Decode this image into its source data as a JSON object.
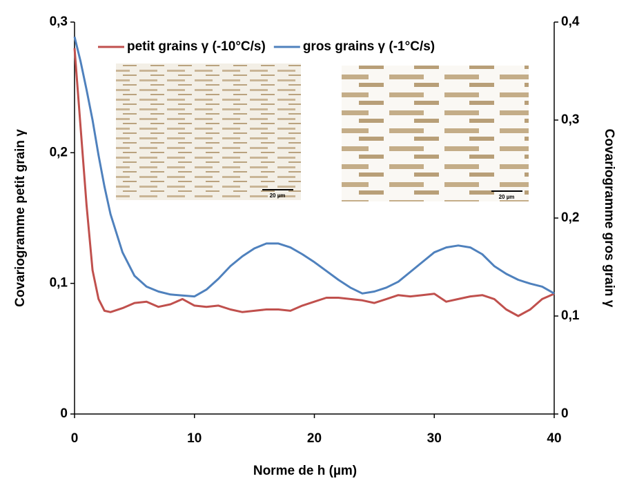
{
  "chart_data": {
    "type": "line",
    "x_label": "Norme de h (µm)",
    "y_label": "Covariogramme petit grain γ",
    "y2_label": "Covariogramme gros grain γ",
    "x": [
      0,
      0.5,
      1,
      1.5,
      2,
      2.5,
      3,
      4,
      5,
      6,
      7,
      8,
      9,
      10,
      11,
      12,
      13,
      14,
      15,
      16,
      17,
      18,
      19,
      20,
      21,
      22,
      23,
      24,
      25,
      26,
      27,
      28,
      29,
      30,
      31,
      32,
      33,
      34,
      35,
      36,
      37,
      38,
      39,
      40
    ],
    "series": [
      {
        "name": "petit grains γ (-10°C/s)",
        "color": "#c0504d",
        "axis": "y",
        "values": [
          0.28,
          0.22,
          0.16,
          0.11,
          0.088,
          0.079,
          0.078,
          0.081,
          0.085,
          0.086,
          0.082,
          0.084,
          0.088,
          0.083,
          0.082,
          0.083,
          0.08,
          0.078,
          0.079,
          0.08,
          0.08,
          0.079,
          0.083,
          0.086,
          0.089,
          0.089,
          0.088,
          0.087,
          0.085,
          0.088,
          0.091,
          0.09,
          0.091,
          0.092,
          0.086,
          0.088,
          0.09,
          0.091,
          0.088,
          0.08,
          0.075,
          0.08,
          0.088,
          0.092
        ]
      },
      {
        "name": "gros grains γ (-1°C/s)",
        "color": "#4f81bd",
        "axis": "y2",
        "values": [
          0.385,
          0.36,
          0.331,
          0.3,
          0.264,
          0.232,
          0.204,
          0.165,
          0.141,
          0.13,
          0.125,
          0.122,
          0.121,
          0.12,
          0.127,
          0.138,
          0.151,
          0.161,
          0.169,
          0.174,
          0.174,
          0.17,
          0.163,
          0.155,
          0.146,
          0.137,
          0.129,
          0.123,
          0.125,
          0.129,
          0.135,
          0.145,
          0.155,
          0.165,
          0.17,
          0.172,
          0.17,
          0.163,
          0.151,
          0.143,
          0.137,
          0.133,
          0.13,
          0.123
        ]
      }
    ],
    "xlim": [
      0,
      40
    ],
    "xticks": [
      0,
      10,
      20,
      30,
      40
    ],
    "ylim": [
      0,
      0.3
    ],
    "yticks": [
      0,
      {
        "value": 0.1,
        "label": "0,1"
      },
      {
        "value": 0.2,
        "label": "0,2"
      },
      {
        "value": 0.3,
        "label": "0,3"
      }
    ],
    "y2lim": [
      0,
      0.4
    ],
    "y2ticks": [
      0,
      {
        "value": 0.1,
        "label": "0,1"
      },
      {
        "value": 0.2,
        "label": "0,2"
      },
      {
        "value": 0.3,
        "label": "0,3"
      },
      {
        "value": 0.4,
        "label": "0,4"
      }
    ],
    "legend": "top",
    "images": [
      {
        "scale_label": "20 µm"
      },
      {
        "scale_label": "20 µm"
      }
    ]
  }
}
